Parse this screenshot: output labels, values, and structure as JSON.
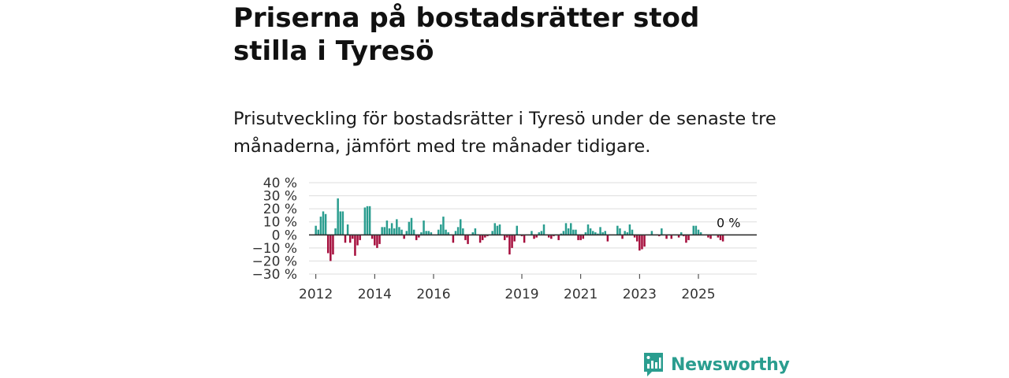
{
  "header": {
    "title": "Priserna på bostadsrätter stod stilla i Tyresö",
    "subtitle": "Prisutveckling för bostadsrätter i Tyresö under de senaste tre månaderna, jämfört med tre månader tidigare."
  },
  "chart_data": {
    "type": "bar",
    "title": "Priserna på bostadsrätter stod stilla i Tyresö",
    "subtitle": "Prisutveckling för bostadsrätter i Tyresö under de senaste tre månaderna, jämfört med tre månader tidigare.",
    "xlabel": "",
    "ylabel": "",
    "ylim": [
      -30,
      40
    ],
    "yticks": [
      {
        "value": 40,
        "label": "40 %"
      },
      {
        "value": 30,
        "label": "30 %"
      },
      {
        "value": 20,
        "label": "20 %"
      },
      {
        "value": 10,
        "label": "10 %"
      },
      {
        "value": 0,
        "label": "0 %"
      },
      {
        "value": -10,
        "label": "−10 %"
      },
      {
        "value": -20,
        "label": "−20 %"
      },
      {
        "value": -30,
        "label": "−30 %"
      }
    ],
    "xticks": [
      {
        "year": 2012,
        "label": "2012"
      },
      {
        "year": 2014,
        "label": "2014"
      },
      {
        "year": 2016,
        "label": "2016"
      },
      {
        "year": 2019,
        "label": "2019"
      },
      {
        "year": 2021,
        "label": "2021"
      },
      {
        "year": 2023,
        "label": "2023"
      },
      {
        "year": 2025,
        "label": "2025"
      }
    ],
    "x_domain": [
      2011.5,
      2026.5
    ],
    "start": {
      "year": 2012,
      "month": 1
    },
    "grid": true,
    "positive_color": "#2a9d8f",
    "negative_color": "#a50d3c",
    "end_label": "0 %",
    "values": [
      7,
      4,
      14,
      18,
      16,
      -14,
      -20,
      -15,
      5,
      28,
      18,
      18,
      -6,
      8,
      -6,
      -3,
      -16,
      -8,
      -4,
      0,
      21,
      22,
      22,
      -3,
      -8,
      -10,
      -7,
      6,
      6,
      11,
      5,
      9,
      5,
      12,
      6,
      4,
      -3,
      3,
      10,
      13,
      4,
      -4,
      -2,
      2,
      11,
      3,
      3,
      2,
      0,
      0,
      4,
      8,
      14,
      4,
      2,
      0,
      -6,
      3,
      6,
      12,
      5,
      -4,
      -7,
      0,
      2,
      5,
      0,
      -6,
      -4,
      -2,
      -1,
      0,
      3,
      9,
      7,
      8,
      0,
      -4,
      -2,
      -15,
      -10,
      -5,
      7,
      0,
      -1,
      -6,
      0,
      0,
      3,
      -3,
      -2,
      2,
      3,
      8,
      0,
      -2,
      -3,
      -1,
      0,
      -4,
      1,
      3,
      9,
      5,
      9,
      4,
      4,
      -4,
      -4,
      -3,
      2,
      8,
      5,
      3,
      2,
      1,
      6,
      2,
      3,
      -5,
      0,
      0,
      0,
      7,
      5,
      -3,
      3,
      2,
      8,
      4,
      -2,
      -5,
      -12,
      -11,
      -9,
      0,
      0,
      3,
      0,
      0,
      -1,
      5,
      0,
      -3,
      0,
      -3,
      0,
      0,
      -2,
      2,
      -1,
      -6,
      -4,
      0,
      7,
      7,
      4,
      2,
      0,
      0,
      -2,
      -3,
      0,
      0,
      -2,
      -4,
      -5,
      0
    ]
  },
  "footer": {
    "brand": "Newsworthy",
    "brand_color": "#2a9d8f",
    "logo_icon": "bar-chart-bubble-icon"
  }
}
